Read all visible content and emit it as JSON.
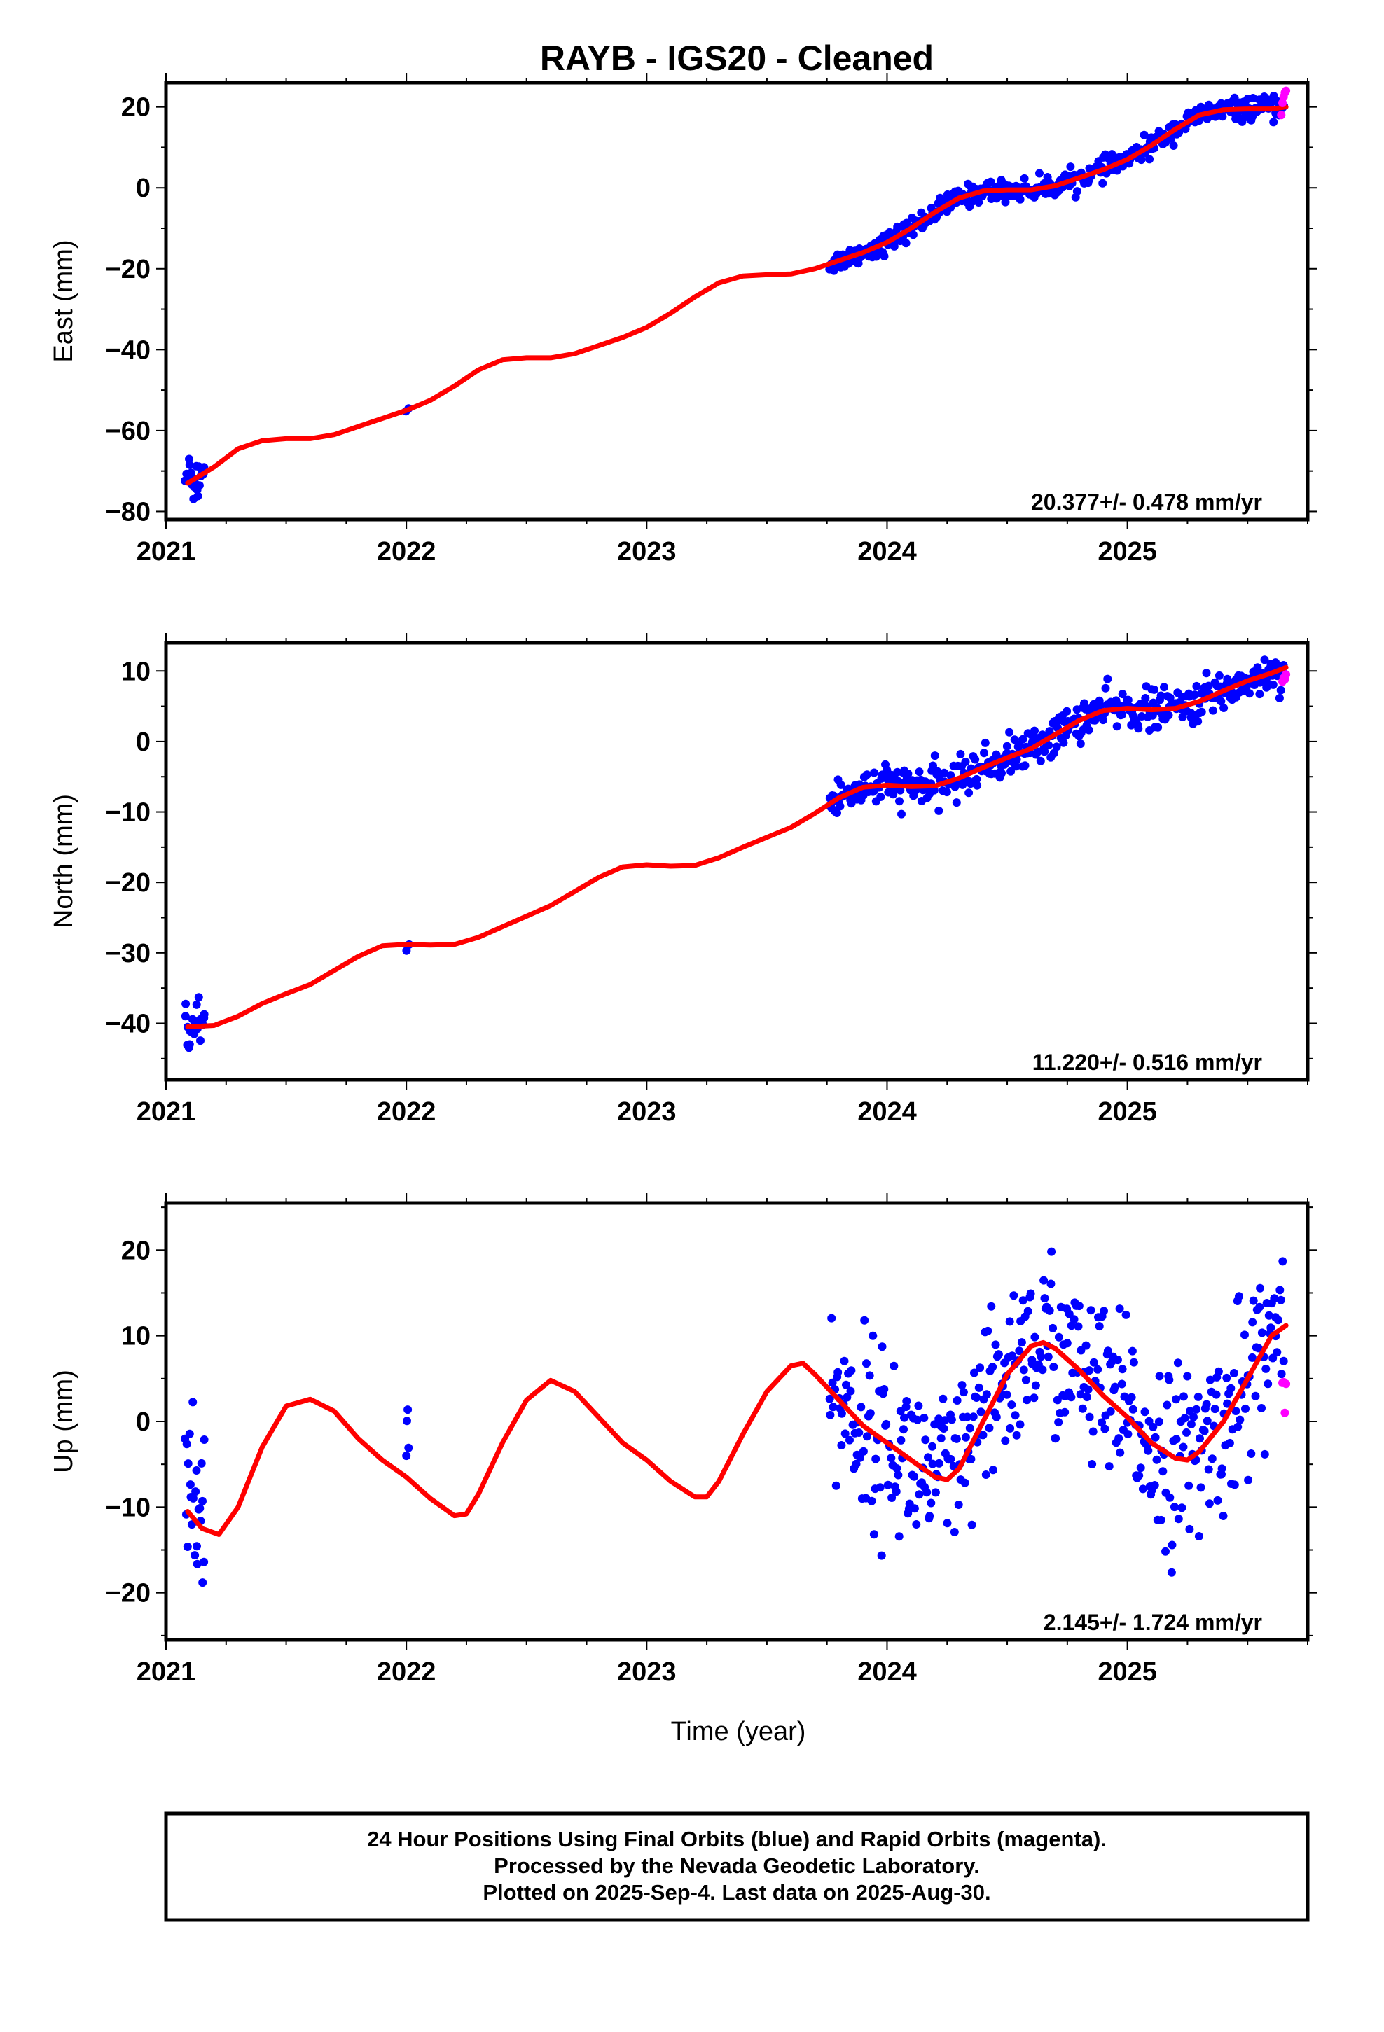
{
  "title": "RAYB  - IGS20 - Cleaned",
  "xlabel": "Time (year)",
  "colors": {
    "final": "#0000ff",
    "rapid": "#ff00ff",
    "fit": "#ff0000"
  },
  "footer": {
    "line1": "24 Hour Positions Using Final Orbits (blue) and Rapid Orbits (magenta).",
    "line2": "Processed by the Nevada Geodetic Laboratory.",
    "line3": "Plotted on 2025-Sep-4. Last data on 2025-Aug-30."
  },
  "chart_data": [
    {
      "type": "scatter",
      "component": "East",
      "ylabel": "East (mm)",
      "rate_text": "20.377+/- 0.478 mm/yr",
      "rate": 20.377,
      "rate_sigma": 0.478,
      "xlim": [
        2021.0,
        2025.75
      ],
      "ylim": [
        -82,
        26
      ],
      "xticks": [
        2021,
        2022,
        2023,
        2024,
        2025
      ],
      "yticks": [
        -80,
        -60,
        -40,
        -20,
        0,
        20
      ],
      "fit": [
        [
          2021.09,
          -73
        ],
        [
          2021.2,
          -69
        ],
        [
          2021.3,
          -64.5
        ],
        [
          2021.4,
          -62.5
        ],
        [
          2021.5,
          -62
        ],
        [
          2021.6,
          -62
        ],
        [
          2021.7,
          -61
        ],
        [
          2021.8,
          -59
        ],
        [
          2021.9,
          -57
        ],
        [
          2022.0,
          -55
        ],
        [
          2022.1,
          -52.5
        ],
        [
          2022.2,
          -49
        ],
        [
          2022.3,
          -45
        ],
        [
          2022.4,
          -42.5
        ],
        [
          2022.5,
          -42
        ],
        [
          2022.6,
          -42
        ],
        [
          2022.7,
          -41
        ],
        [
          2022.8,
          -39
        ],
        [
          2022.9,
          -37
        ],
        [
          2023.0,
          -34.5
        ],
        [
          2023.1,
          -31
        ],
        [
          2023.2,
          -27
        ],
        [
          2023.3,
          -23.5
        ],
        [
          2023.4,
          -21.8
        ],
        [
          2023.5,
          -21.5
        ],
        [
          2023.6,
          -21.3
        ],
        [
          2023.7,
          -20
        ],
        [
          2023.8,
          -18
        ],
        [
          2023.9,
          -16
        ],
        [
          2024.0,
          -13.5
        ],
        [
          2024.1,
          -10
        ],
        [
          2024.2,
          -6
        ],
        [
          2024.3,
          -2.5
        ],
        [
          2024.4,
          -0.8
        ],
        [
          2024.5,
          -0.5
        ],
        [
          2024.6,
          -0.5
        ],
        [
          2024.7,
          0.5
        ],
        [
          2024.8,
          2.5
        ],
        [
          2024.9,
          4.5
        ],
        [
          2025.0,
          7
        ],
        [
          2025.1,
          10.5
        ],
        [
          2025.2,
          14.5
        ],
        [
          2025.3,
          18
        ],
        [
          2025.4,
          19.3
        ],
        [
          2025.5,
          19.5
        ],
        [
          2025.6,
          19.5
        ],
        [
          2025.66,
          20
        ]
      ],
      "final": {
        "segments": [
          {
            "t0": 2023.76,
            "t1": 2025.65,
            "n": 430,
            "noise": 1.3
          },
          {
            "t0": 2021.08,
            "t1": 2021.16,
            "n": 22,
            "noise": 2.6
          },
          {
            "t0": 2022.0,
            "t1": 2022.01,
            "n": 2,
            "noise": 0.5
          }
        ]
      },
      "rapid": [
        [
          2025.64,
          18
        ],
        [
          2025.645,
          21
        ],
        [
          2025.65,
          22.5
        ],
        [
          2025.655,
          23.5
        ],
        [
          2025.66,
          24
        ]
      ]
    },
    {
      "type": "scatter",
      "component": "North",
      "ylabel": "North (mm)",
      "rate_text": "11.220+/- 0.516 mm/yr",
      "rate": 11.22,
      "rate_sigma": 0.516,
      "xlim": [
        2021.0,
        2025.75
      ],
      "ylim": [
        -48,
        14
      ],
      "xticks": [
        2021,
        2022,
        2023,
        2024,
        2025
      ],
      "yticks": [
        -40,
        -30,
        -20,
        -10,
        0,
        10
      ],
      "fit": [
        [
          2021.09,
          -40.5
        ],
        [
          2021.2,
          -40.3
        ],
        [
          2021.3,
          -39
        ],
        [
          2021.4,
          -37.2
        ],
        [
          2021.5,
          -35.8
        ],
        [
          2021.6,
          -34.5
        ],
        [
          2021.7,
          -32.5
        ],
        [
          2021.8,
          -30.5
        ],
        [
          2021.9,
          -29
        ],
        [
          2022.0,
          -28.8
        ],
        [
          2022.1,
          -28.9
        ],
        [
          2022.2,
          -28.8
        ],
        [
          2022.3,
          -27.8
        ],
        [
          2022.4,
          -26.3
        ],
        [
          2022.5,
          -24.8
        ],
        [
          2022.6,
          -23.3
        ],
        [
          2022.7,
          -21.3
        ],
        [
          2022.8,
          -19.3
        ],
        [
          2022.9,
          -17.8
        ],
        [
          2023.0,
          -17.5
        ],
        [
          2023.1,
          -17.7
        ],
        [
          2023.2,
          -17.6
        ],
        [
          2023.3,
          -16.5
        ],
        [
          2023.4,
          -15
        ],
        [
          2023.5,
          -13.6
        ],
        [
          2023.6,
          -12.2
        ],
        [
          2023.7,
          -10.2
        ],
        [
          2023.8,
          -8
        ],
        [
          2023.9,
          -6.5
        ],
        [
          2024.0,
          -6.2
        ],
        [
          2024.1,
          -6.4
        ],
        [
          2024.2,
          -6.3
        ],
        [
          2024.3,
          -5.2
        ],
        [
          2024.4,
          -3.7
        ],
        [
          2024.5,
          -2.3
        ],
        [
          2024.6,
          -1
        ],
        [
          2024.7,
          1
        ],
        [
          2024.8,
          3
        ],
        [
          2024.9,
          4.4
        ],
        [
          2025.0,
          4.7
        ],
        [
          2025.1,
          4.5
        ],
        [
          2025.2,
          4.7
        ],
        [
          2025.3,
          5.7
        ],
        [
          2025.4,
          7.2
        ],
        [
          2025.5,
          8.6
        ],
        [
          2025.6,
          9.7
        ],
        [
          2025.66,
          10.5
        ]
      ],
      "final": {
        "segments": [
          {
            "t0": 2023.76,
            "t1": 2025.65,
            "n": 430,
            "noise": 1.4
          },
          {
            "t0": 2021.08,
            "t1": 2021.16,
            "n": 22,
            "noise": 2.2
          },
          {
            "t0": 2022.0,
            "t1": 2022.01,
            "n": 2,
            "noise": 0.5
          }
        ]
      },
      "rapid": [
        [
          2025.645,
          8.5
        ],
        [
          2025.65,
          9
        ],
        [
          2025.655,
          8.8
        ],
        [
          2025.66,
          9.5
        ]
      ]
    },
    {
      "type": "scatter",
      "component": "Up",
      "ylabel": "Up (mm)",
      "rate_text": "2.145+/- 1.724 mm/yr",
      "rate": 2.145,
      "rate_sigma": 1.724,
      "xlim": [
        2021.0,
        2025.75
      ],
      "ylim": [
        -25.5,
        25.5
      ],
      "xticks": [
        2021,
        2022,
        2023,
        2024,
        2025
      ],
      "yticks": [
        -20,
        -10,
        0,
        10,
        20
      ],
      "fit": [
        [
          2021.09,
          -10.5
        ],
        [
          2021.15,
          -12.5
        ],
        [
          2021.22,
          -13.2
        ],
        [
          2021.3,
          -10
        ],
        [
          2021.4,
          -3
        ],
        [
          2021.5,
          1.8
        ],
        [
          2021.6,
          2.6
        ],
        [
          2021.7,
          1.2
        ],
        [
          2021.8,
          -2
        ],
        [
          2021.9,
          -4.5
        ],
        [
          2022.0,
          -6.5
        ],
        [
          2022.1,
          -9
        ],
        [
          2022.2,
          -11
        ],
        [
          2022.25,
          -10.8
        ],
        [
          2022.3,
          -8.5
        ],
        [
          2022.4,
          -2.5
        ],
        [
          2022.5,
          2.5
        ],
        [
          2022.6,
          4.8
        ],
        [
          2022.7,
          3.5
        ],
        [
          2022.8,
          0.5
        ],
        [
          2022.9,
          -2.5
        ],
        [
          2023.0,
          -4.5
        ],
        [
          2023.1,
          -7
        ],
        [
          2023.2,
          -8.8
        ],
        [
          2023.25,
          -8.8
        ],
        [
          2023.3,
          -7
        ],
        [
          2023.4,
          -1.5
        ],
        [
          2023.5,
          3.5
        ],
        [
          2023.6,
          6.5
        ],
        [
          2023.65,
          6.8
        ],
        [
          2023.7,
          5.5
        ],
        [
          2023.8,
          2.5
        ],
        [
          2023.9,
          -0.5
        ],
        [
          2024.0,
          -2.5
        ],
        [
          2024.1,
          -4.5
        ],
        [
          2024.2,
          -6.5
        ],
        [
          2024.25,
          -6.8
        ],
        [
          2024.3,
          -5.5
        ],
        [
          2024.4,
          0
        ],
        [
          2024.5,
          5.5
        ],
        [
          2024.6,
          8.8
        ],
        [
          2024.65,
          9.2
        ],
        [
          2024.7,
          8.5
        ],
        [
          2024.8,
          6
        ],
        [
          2024.9,
          3
        ],
        [
          2025.0,
          0.5
        ],
        [
          2025.1,
          -2.5
        ],
        [
          2025.2,
          -4.3
        ],
        [
          2025.25,
          -4.5
        ],
        [
          2025.3,
          -3.5
        ],
        [
          2025.4,
          0
        ],
        [
          2025.5,
          5
        ],
        [
          2025.6,
          10
        ],
        [
          2025.66,
          11.2
        ]
      ],
      "final": {
        "segments": [
          {
            "t0": 2023.76,
            "t1": 2025.65,
            "n": 430,
            "noise": 5.2
          },
          {
            "t0": 2021.08,
            "t1": 2021.16,
            "n": 24,
            "noise": 6
          },
          {
            "t0": 2022.0,
            "t1": 2022.01,
            "n": 4,
            "noise": 4
          }
        ]
      },
      "rapid": [
        [
          2025.645,
          4.5
        ],
        [
          2025.65,
          4.6
        ],
        [
          2025.655,
          1
        ],
        [
          2025.66,
          4.4
        ]
      ]
    }
  ]
}
